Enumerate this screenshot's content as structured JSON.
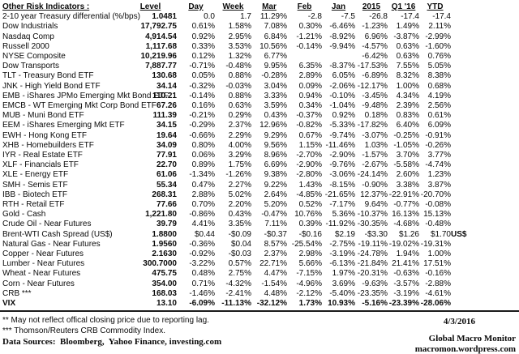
{
  "report": {
    "title_column": "Other Risk Indicators :",
    "columns": [
      "Level",
      "Day",
      "Week",
      "Mar",
      "Feb",
      "Jan",
      "2015",
      "Q1 '16",
      "YTD"
    ],
    "rows": [
      {
        "label": "2-10 year Treasury differential (%/bps)",
        "values": [
          "1.0481",
          "0.0",
          "1.7",
          "11.29%",
          "-2.8",
          "-7.5",
          "-26.8",
          "-17.4",
          "-17.4"
        ],
        "note": "",
        "bold": false
      },
      {
        "label": "Dow Industrials",
        "values": [
          "17,792.75",
          "0.61%",
          "1.58%",
          "7.08%",
          "0.30%",
          "-6.46%",
          "-1.23%",
          "1.49%",
          "2.11%"
        ],
        "note": "",
        "bold": false
      },
      {
        "label": "Nasdaq Comp",
        "values": [
          "4,914.54",
          "0.92%",
          "2.95%",
          "6.84%",
          "-1.21%",
          "-8.92%",
          "6.96%",
          "-3.87%",
          "-2.99%"
        ],
        "note": "",
        "bold": false
      },
      {
        "label": "Russell 2000",
        "values": [
          "1,117.68",
          "0.33%",
          "3.53%",
          "10.56%",
          "-0.14%",
          "-9.94%",
          "-4.57%",
          "0.63%",
          "-1.60%"
        ],
        "note": "",
        "bold": false
      },
      {
        "label": "NYSE Composite",
        "values": [
          "10,219.96",
          "0.12%",
          "1.32%",
          "6.77%",
          "",
          "",
          "-6.42%",
          "0.63%",
          "0.76%"
        ],
        "note": "",
        "bold": false
      },
      {
        "label": "Dow Transports",
        "values": [
          "7,887.77",
          "-0.71%",
          "-0.48%",
          "9.95%",
          "6.35%",
          "-8.37%",
          "-17.53%",
          "7.55%",
          "5.05%"
        ],
        "note": "",
        "bold": false
      },
      {
        "label": "TLT - Treasury Bond ETF",
        "values": [
          "130.68",
          "0.05%",
          "0.88%",
          "-0.28%",
          "2.89%",
          "6.05%",
          "-6.89%",
          "8.32%",
          "8.38%"
        ],
        "note": "",
        "bold": false
      },
      {
        "label": "JNK - High Yield Bond ETF",
        "values": [
          "34.14",
          "-0.32%",
          "-0.03%",
          "3.04%",
          "0.09%",
          "-2.06%",
          "-12.17%",
          "1.00%",
          "0.68%"
        ],
        "note": "",
        "bold": false
      },
      {
        "label": "EMB - iShares JPMo Emerging Mkt Bond ETF",
        "values": [
          "110.21",
          "-0.14%",
          "0.88%",
          "3.33%",
          "0.94%",
          "-0.10%",
          "-3.45%",
          "4.34%",
          "4.19%"
        ],
        "note": "",
        "bold": false
      },
      {
        "label": "EMCB - WT Emerging Mkt Corp Bond ETF",
        "values": [
          "67.26",
          "0.16%",
          "0.63%",
          "3.59%",
          "0.34%",
          "-1.04%",
          "-9.48%",
          "2.39%",
          "2.56%"
        ],
        "note": "",
        "bold": false
      },
      {
        "label": "MUB - Muni Bond ETF",
        "values": [
          "111.39",
          "-0.21%",
          "0.29%",
          "0.43%",
          "-0.37%",
          "0.92%",
          "0.18%",
          "0.83%",
          "0.61%"
        ],
        "note": "",
        "bold": false
      },
      {
        "label": "EEM - iShares Emerging Mkt ETF",
        "values": [
          "34.15",
          "-0.29%",
          "2.37%",
          "12.96%",
          "-0.82%",
          "-5.33%",
          "-17.82%",
          "6.40%",
          "6.09%"
        ],
        "note": "",
        "bold": false
      },
      {
        "label": "EWH - Hong Kong ETF",
        "values": [
          "19.64",
          "-0.66%",
          "2.29%",
          "9.29%",
          "0.67%",
          "-9.74%",
          "-3.07%",
          "-0.25%",
          "-0.91%"
        ],
        "note": "",
        "bold": false
      },
      {
        "label": "XHB - Homebuilders ETF",
        "values": [
          "34.09",
          "0.80%",
          "4.00%",
          "9.56%",
          "1.15%",
          "-11.46%",
          "1.03%",
          "-1.05%",
          "-0.26%"
        ],
        "note": "",
        "bold": false
      },
      {
        "label": "IYR - Real Estate ETF",
        "values": [
          "77.91",
          "0.06%",
          "3.29%",
          "8.96%",
          "-2.70%",
          "-2.90%",
          "-1.57%",
          "3.70%",
          "3.77%"
        ],
        "note": "",
        "bold": false
      },
      {
        "label": "XLF - Financials ETF",
        "values": [
          "22.70",
          "0.89%",
          "1.75%",
          "6.69%",
          "-2.90%",
          "-9.76%",
          "-2.67%",
          "-5.58%",
          "-4.74%"
        ],
        "note": "",
        "bold": false
      },
      {
        "label": "XLE - Energy ETF",
        "values": [
          "61.06",
          "-1.34%",
          "-1.26%",
          "9.38%",
          "-2.80%",
          "-3.06%",
          "-24.14%",
          "2.60%",
          "1.23%"
        ],
        "note": "",
        "bold": false
      },
      {
        "label": "SMH - Semis ETF",
        "values": [
          "55.34",
          "0.47%",
          "2.27%",
          "9.22%",
          "1.43%",
          "-8.15%",
          "-0.90%",
          "3.38%",
          "3.87%"
        ],
        "note": "",
        "bold": false
      },
      {
        "label": "IBB - Biotech ETF",
        "values": [
          "268.31",
          "2.88%",
          "5.02%",
          "2.64%",
          "-4.85%",
          "-21.65%",
          "12.37%",
          "-22.91%",
          "-20.70%"
        ],
        "note": "",
        "bold": false
      },
      {
        "label": "RTH - Retail ETF",
        "values": [
          "77.66",
          "0.70%",
          "2.20%",
          "5.20%",
          "0.52%",
          "-7.17%",
          "9.64%",
          "-0.77%",
          "-0.08%"
        ],
        "note": "",
        "bold": false
      },
      {
        "label": "Gold - Cash",
        "values": [
          "1,221.80",
          "-0.86%",
          "0.43%",
          "-0.47%",
          "10.76%",
          "5.36%",
          "-10.37%",
          "16.13%",
          "15.13%"
        ],
        "note": "",
        "bold": false
      },
      {
        "label": "Crude Oil - Near Futures",
        "values": [
          "39.79",
          "4.41%",
          "3.35%",
          "7.11%",
          "0.39%",
          "-11.92%",
          "-30.35%",
          "-4.68%",
          "-0.48%"
        ],
        "note": "",
        "bold": false
      },
      {
        "label": "Brent-WTI Cash Spread (US$)",
        "values": [
          "1.8800",
          "$0.44",
          "-$0.09",
          "-$0.37",
          "-$0.16",
          "$2.19",
          "-$3.30",
          "$1.26",
          "$1.70"
        ],
        "note": "US$",
        "bold": false
      },
      {
        "label": "Natural Gas - Near Futures",
        "values": [
          "1.9560",
          "-0.36%",
          "$0.04",
          "8.57%",
          "-25.54%",
          "-2.75%",
          "-19.11%",
          "-19.02%",
          "-19.31%"
        ],
        "note": "",
        "bold": false
      },
      {
        "label": "Copper - Near Futures",
        "values": [
          "2.1630",
          "-0.92%",
          "-$0.03",
          "2.37%",
          "2.98%",
          "-3.19%",
          "-24.78%",
          "1.94%",
          "1.00%"
        ],
        "note": "",
        "bold": false
      },
      {
        "label": "Lumber - Near Futures",
        "values": [
          "300.7000",
          "-3.22%",
          "0.57%",
          "22.71%",
          "5.66%",
          "-6.13%",
          "-21.84%",
          "21.41%",
          "17.51%"
        ],
        "note": "",
        "bold": false
      },
      {
        "label": "Wheat - Near Futures",
        "values": [
          "475.75",
          "0.48%",
          "2.75%",
          "4.47%",
          "-7.15%",
          "1.97%",
          "-20.31%",
          "-0.63%",
          "-0.16%"
        ],
        "note": "",
        "bold": false
      },
      {
        "label": "Corn - Near Futures",
        "values": [
          "354.00",
          "0.71%",
          "-4.32%",
          "-1.54%",
          "-4.96%",
          "3.69%",
          "-9.63%",
          "-3.57%",
          "-2.88%"
        ],
        "note": "",
        "bold": false
      },
      {
        "label": "CRB ***",
        "values": [
          "168.03",
          "-1.46%",
          "-2.41%",
          "4.48%",
          "-2.12%",
          "-5.40%",
          "-23.35%",
          "-3.19%",
          "-4.61%"
        ],
        "note": "",
        "bold": false
      },
      {
        "label": "VIX",
        "values": [
          "13.10",
          "-6.09%",
          "-11.13%",
          "-32.12%",
          "1.73%",
          "10.93%",
          "-5.16%",
          "-23.39%",
          "-28.06%"
        ],
        "note": "",
        "bold": true
      }
    ],
    "footnotes": [
      "** May not reflect offical closing price due to reporting lag.",
      "*** Thomson/Reuters CRB Commodity Index."
    ],
    "data_sources": "Data Sources:  Bloomberg,  Yahoo Finance, investing.com",
    "date": "4/3/2016",
    "brand": "Global Macro Monitor",
    "url": "macromon.wordpress.com"
  }
}
